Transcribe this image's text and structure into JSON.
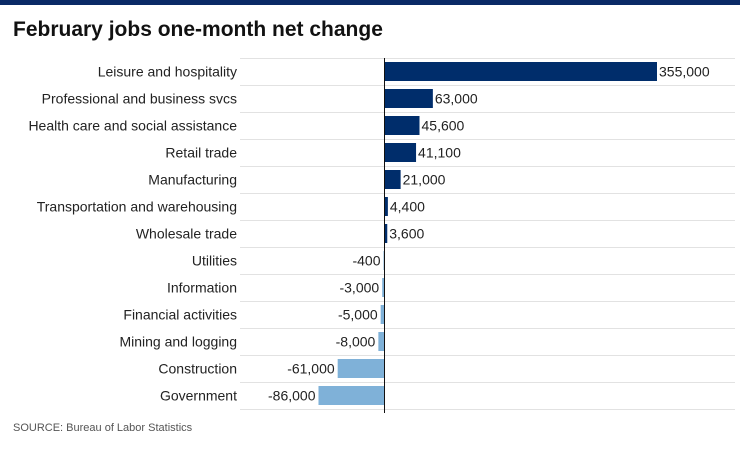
{
  "colors": {
    "top_rule": "#0a2a66",
    "positive": "#002d6b",
    "negative": "#7fb1d8",
    "gridline": "#e2e2e2",
    "axis": "#111111"
  },
  "source": "SOURCE: Bureau of Labor Statistics",
  "chart_data": {
    "type": "bar",
    "orientation": "horizontal",
    "title": "February jobs one-month net change",
    "categories": [
      "Leisure and hospitality",
      "Professional and business svcs",
      "Health care and social assistance",
      "Retail trade",
      "Manufacturing",
      "Transportation and warehousing",
      "Wholesale trade",
      "Utilities",
      "Information",
      "Financial activities",
      "Mining and logging",
      "Construction",
      "Government"
    ],
    "values": [
      355000,
      63000,
      45600,
      41100,
      21000,
      4400,
      3600,
      -400,
      -3000,
      -5000,
      -8000,
      -61000,
      -86000
    ],
    "value_labels": [
      "355,000",
      "63,000",
      "45,600",
      "41,100",
      "21,000",
      "4,400",
      "3,600",
      "-400",
      "-3,000",
      "-5,000",
      "-8,000",
      "-61,000",
      "-86,000"
    ],
    "grid": true,
    "legend": "none"
  }
}
